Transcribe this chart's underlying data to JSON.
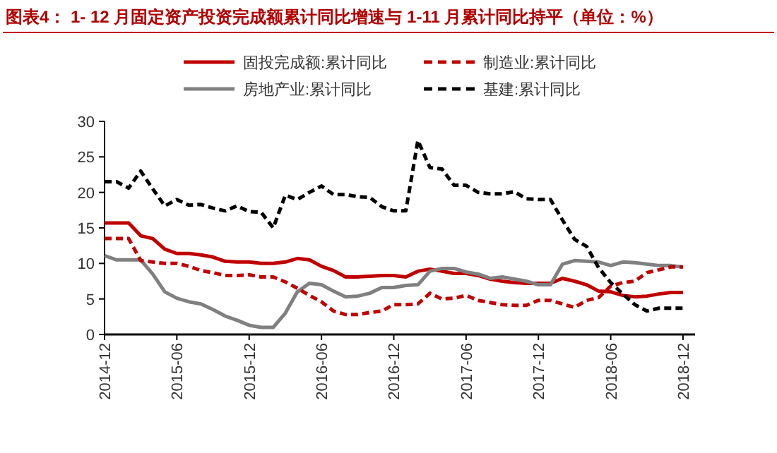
{
  "chart_data": {
    "type": "line",
    "title": "图表4：  1- 12 月固定资产投资完成额累计同比增速与 1-11 月累计同比持平（单位：%）",
    "x": [
      "2014-12",
      "2015-01",
      "2015-02",
      "2015-03",
      "2015-04",
      "2015-05",
      "2015-06",
      "2015-07",
      "2015-08",
      "2015-09",
      "2015-10",
      "2015-11",
      "2015-12",
      "2016-01",
      "2016-02",
      "2016-03",
      "2016-04",
      "2016-05",
      "2016-06",
      "2016-07",
      "2016-08",
      "2016-09",
      "2016-10",
      "2016-11",
      "2016-12",
      "2017-01",
      "2017-02",
      "2017-03",
      "2017-04",
      "2017-05",
      "2017-06",
      "2017-07",
      "2017-08",
      "2017-09",
      "2017-10",
      "2017-11",
      "2017-12",
      "2018-01",
      "2018-02",
      "2018-03",
      "2018-04",
      "2018-05",
      "2018-06",
      "2018-07",
      "2018-08",
      "2018-09",
      "2018-10",
      "2018-11",
      "2018-12"
    ],
    "series": [
      {
        "name": "固投完成额:累计同比",
        "color": "#c00000",
        "line_style": "solid",
        "values": [
          15.7,
          15.7,
          15.7,
          13.9,
          13.5,
          12.0,
          11.4,
          11.4,
          11.2,
          10.9,
          10.3,
          10.2,
          10.2,
          10.0,
          10.0,
          10.2,
          10.7,
          10.5,
          9.6,
          9.0,
          8.1,
          8.1,
          8.2,
          8.3,
          8.3,
          8.1,
          8.9,
          9.2,
          8.9,
          8.6,
          8.6,
          8.3,
          7.8,
          7.5,
          7.3,
          7.2,
          7.2,
          7.2,
          7.9,
          7.5,
          7.0,
          6.1,
          6.0,
          5.5,
          5.3,
          5.4,
          5.7,
          5.9,
          5.9
        ]
      },
      {
        "name": "制造业:累计同比",
        "color": "#c00000",
        "line_style": "dashed",
        "values": [
          13.5,
          13.5,
          13.5,
          10.4,
          10.2,
          10.0,
          10.0,
          9.6,
          9.0,
          8.7,
          8.3,
          8.3,
          8.4,
          8.1,
          8.1,
          7.4,
          6.5,
          5.5,
          4.6,
          3.3,
          2.8,
          2.8,
          3.1,
          3.3,
          4.2,
          4.2,
          4.3,
          5.8,
          5.0,
          5.1,
          5.5,
          4.8,
          4.5,
          4.2,
          4.1,
          4.1,
          4.8,
          4.8,
          4.3,
          3.8,
          4.8,
          5.2,
          6.8,
          7.3,
          7.5,
          8.7,
          9.1,
          9.5,
          9.5
        ]
      },
      {
        "name": "房地产业:累计同比",
        "color": "#808080",
        "line_style": "solid",
        "values": [
          11.1,
          10.5,
          10.5,
          10.5,
          8.5,
          6.0,
          5.1,
          4.6,
          4.3,
          3.5,
          2.6,
          2.0,
          1.3,
          1.0,
          1.0,
          3.0,
          6.0,
          7.2,
          7.0,
          6.1,
          5.3,
          5.4,
          5.8,
          6.6,
          6.6,
          6.9,
          7.0,
          8.9,
          9.3,
          9.3,
          8.8,
          8.5,
          7.9,
          8.1,
          7.8,
          7.5,
          7.0,
          7.0,
          9.9,
          10.4,
          10.3,
          10.2,
          9.7,
          10.2,
          10.1,
          9.9,
          9.7,
          9.7,
          9.5
        ]
      },
      {
        "name": "基建:累计同比",
        "color": "#000000",
        "line_style": "dashed",
        "values": [
          21.5,
          21.5,
          20.6,
          23.0,
          20.5,
          18.1,
          19.0,
          18.2,
          18.3,
          17.8,
          17.4,
          18.1,
          17.3,
          17.2,
          15.0,
          19.6,
          19.0,
          20.0,
          20.9,
          19.7,
          19.7,
          19.4,
          19.3,
          18.0,
          17.4,
          17.4,
          27.3,
          23.5,
          23.3,
          21.0,
          21.0,
          20.0,
          19.8,
          19.8,
          20.1,
          19.1,
          19.0,
          19.0,
          16.1,
          13.4,
          12.4,
          9.4,
          7.3,
          5.7,
          4.2,
          3.3,
          3.7,
          3.7,
          3.7
        ]
      }
    ],
    "xticks": [
      "2014-12",
      "2015-06",
      "2015-12",
      "2016-06",
      "2016-12",
      "2017-06",
      "2017-12",
      "2018-06",
      "2018-12"
    ],
    "xlim": [
      "2014-12",
      "2019-01"
    ],
    "ylim": [
      0,
      30
    ],
    "yticks": [
      0,
      5,
      10,
      15,
      20,
      25,
      30
    ],
    "grid": false,
    "legend": "top"
  }
}
